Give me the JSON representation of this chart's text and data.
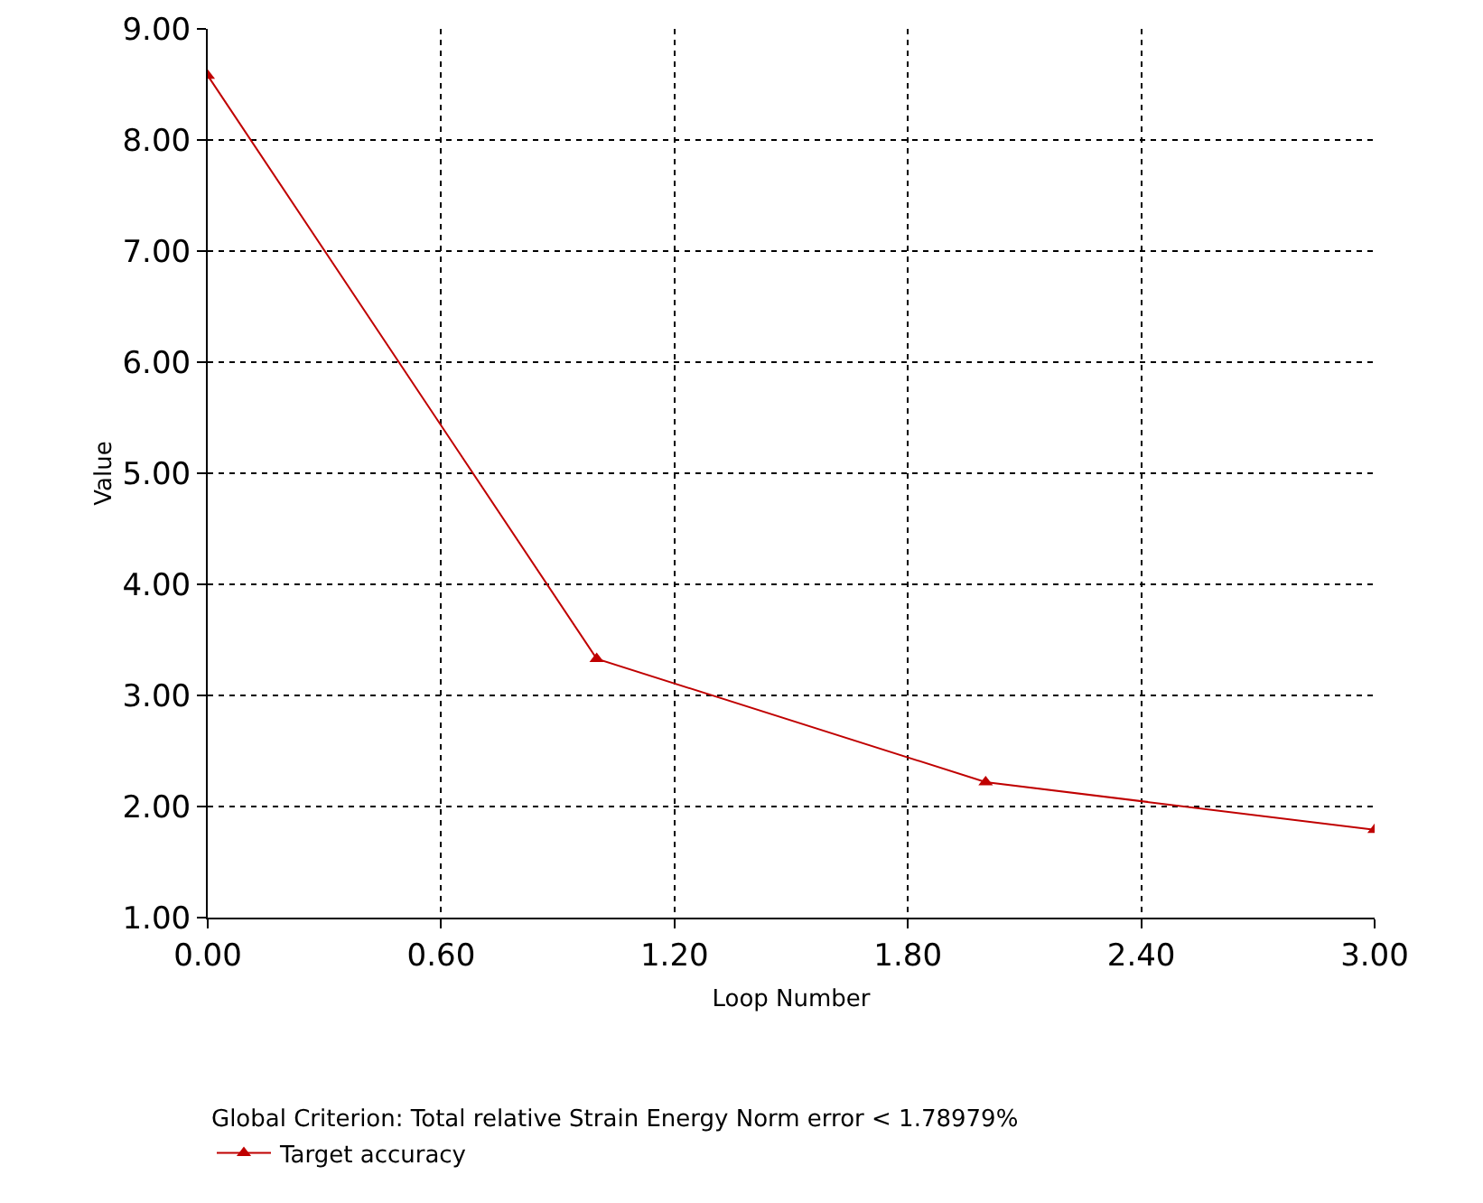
{
  "chart_data": {
    "type": "line",
    "xlabel": "Loop Number",
    "ylabel": "Value",
    "legend_title": "Global Criterion: Total relative Strain Energy Norm error < 1.78979%",
    "x": [
      0,
      1,
      2,
      3
    ],
    "series": [
      {
        "name": "Target accuracy",
        "color": "#c00000",
        "values": [
          8.58,
          3.33,
          2.22,
          1.79
        ]
      }
    ],
    "xlim": [
      0,
      3
    ],
    "xticks": [
      {
        "value": 0,
        "label": "0.00"
      },
      {
        "value": 0.6,
        "label": "0.60"
      },
      {
        "value": 1.2,
        "label": "1.20"
      },
      {
        "value": 1.8,
        "label": "1.80"
      },
      {
        "value": 2.4,
        "label": "2.40"
      },
      {
        "value": 3,
        "label": "3.00"
      }
    ],
    "ylim": [
      1,
      9
    ],
    "yticks": [
      {
        "value": 1,
        "label": "1.00"
      },
      {
        "value": 2,
        "label": "2.00"
      },
      {
        "value": 3,
        "label": "3.00"
      },
      {
        "value": 4,
        "label": "4.00"
      },
      {
        "value": 5,
        "label": "5.00"
      },
      {
        "value": 6,
        "label": "6.00"
      },
      {
        "value": 7,
        "label": "7.00"
      },
      {
        "value": 8,
        "label": "8.00"
      },
      {
        "value": 9,
        "label": "9.00"
      }
    ],
    "grid": true,
    "legend": "bottom",
    "marker": "triangle",
    "line_style": "solid"
  }
}
